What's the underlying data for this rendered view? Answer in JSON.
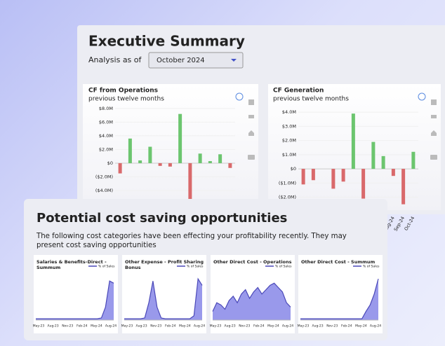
{
  "header": {
    "title": "Executive Summary",
    "analysis_label": "Analysis as of",
    "dropdown": "October 2024"
  },
  "chart_data": [
    {
      "type": "bar",
      "title": "CF from Operations",
      "subtitle": "previous twelve months",
      "categories": [
        null,
        null,
        null,
        null,
        null,
        null,
        null,
        null,
        null,
        null,
        null,
        null
      ],
      "values": [
        -1.5,
        3.6,
        0.4,
        2.4,
        -0.4,
        -0.5,
        7.2,
        -5.3,
        1.4,
        0.3,
        1.3,
        -0.7
      ],
      "positive_color": "#6cc56f",
      "negative_color": "#d9696b",
      "ylim": [
        -6,
        8.5
      ],
      "yticks": [
        {
          "value": 8,
          "label": "$8.0M"
        },
        {
          "value": 6,
          "label": "$6.0M"
        },
        {
          "value": 4,
          "label": "$4.0M"
        },
        {
          "value": 2,
          "label": "$2.0M"
        },
        {
          "value": 0,
          "label": "$0"
        },
        {
          "value": -2,
          "label": "($2.0M)"
        },
        {
          "value": -4,
          "label": "($4.0M)"
        }
      ]
    },
    {
      "type": "bar",
      "title": "CF Generation",
      "subtitle": "previous twelve months",
      "categories": [
        null,
        null,
        null,
        null,
        null,
        null,
        null,
        null,
        null,
        "Aug-24",
        "Sep-24",
        "Oct-24"
      ],
      "values": [
        -1.1,
        -0.8,
        0,
        -1.4,
        -0.9,
        3.9,
        -2.1,
        1.9,
        0.9,
        -0.5,
        -2.5,
        1.2
      ],
      "positive_color": "#6cc56f",
      "negative_color": "#d9696b",
      "ylim": [
        -2.7,
        4.5
      ],
      "yticks": [
        {
          "value": 4,
          "label": "$4.0M"
        },
        {
          "value": 3,
          "label": "$3.0M"
        },
        {
          "value": 2,
          "label": "$2.0M"
        },
        {
          "value": 1,
          "label": "$1.0M"
        },
        {
          "value": 0,
          "label": "$0"
        },
        {
          "value": -1,
          "label": "($1.0M)"
        },
        {
          "value": -2,
          "label": "($2.0M)"
        }
      ]
    },
    {
      "type": "area",
      "title": "Salaries & Benefits-Direct - Summum",
      "ylim": [
        0,
        100
      ],
      "x_labels": [
        "May-23",
        "Aug-23",
        "Nov-23",
        "Feb-24",
        "May-24",
        "Aug-24"
      ],
      "series": [
        {
          "name": "% of Sales",
          "color": "#7f7fe6",
          "values": [
            3,
            3,
            3,
            3,
            3,
            3,
            3,
            3,
            3,
            3,
            3,
            3,
            3,
            3,
            3,
            3,
            5,
            30,
            90,
            85
          ]
        }
      ]
    },
    {
      "type": "area",
      "title": "Other Expense - Profit Sharing Bonus",
      "ylim": [
        0,
        100
      ],
      "x_labels": [
        "May-23",
        "Aug-23",
        "Nov-23",
        "Feb-24",
        "May-24",
        "Aug-24"
      ],
      "series": [
        {
          "name": "% of Sales",
          "color": "#7f7fe6",
          "values": [
            3,
            3,
            3,
            3,
            3,
            5,
            40,
            90,
            30,
            5,
            3,
            3,
            3,
            3,
            3,
            3,
            3,
            10,
            95,
            80
          ]
        }
      ]
    },
    {
      "type": "area",
      "title": "Other Direct Cost - Operations",
      "ylim": [
        0,
        100
      ],
      "x_labels": [
        "May-23",
        "Aug-23",
        "Nov-23",
        "Feb-24",
        "May-24",
        "Aug-24"
      ],
      "series": [
        {
          "name": "% of Sales",
          "color": "#7f7fe6",
          "values": [
            20,
            40,
            35,
            25,
            45,
            55,
            40,
            60,
            70,
            50,
            65,
            75,
            60,
            70,
            80,
            85,
            75,
            65,
            40,
            30
          ]
        }
      ]
    },
    {
      "type": "area",
      "title": "Other Direct Cost - Summum",
      "ylim": [
        0,
        100
      ],
      "x_labels": [
        "May-23",
        "Aug-23",
        "Nov-23",
        "Feb-24",
        "May-24",
        "Aug-24"
      ],
      "series": [
        {
          "name": "% of Sales",
          "color": "#7f7fe6",
          "values": [
            3,
            3,
            3,
            3,
            3,
            3,
            3,
            3,
            3,
            3,
            3,
            3,
            3,
            3,
            3,
            3,
            20,
            35,
            60,
            95
          ]
        }
      ]
    }
  ],
  "opportunities": {
    "title": "Potential cost saving opportunities",
    "description_1": "The following cost categories have been effecting your profitability recently. They may",
    "description_2": "present cost saving opportunities"
  }
}
